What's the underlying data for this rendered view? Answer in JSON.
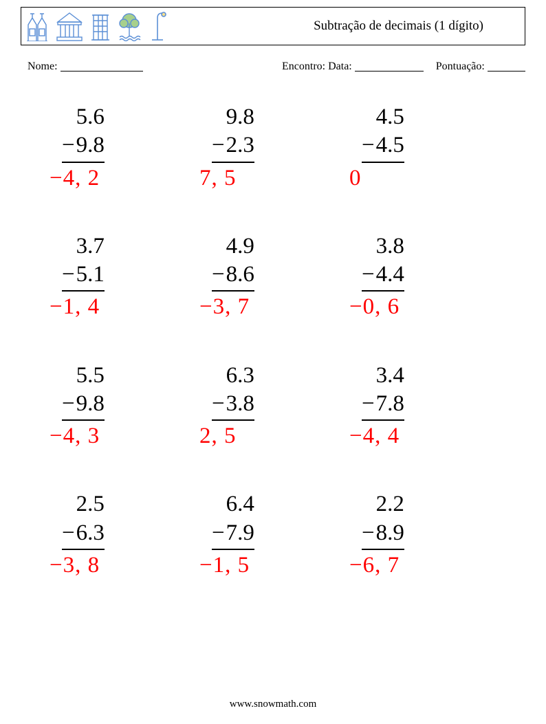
{
  "header": {
    "title": "Subtração de decimais (1 dígito)",
    "icon_stroke": "#5b8fd6",
    "icon_fill": "#a7d08c"
  },
  "meta": {
    "name_label": "Nome:",
    "date_label": "Encontro: Data:",
    "score_label": "Pontuação:",
    "name_blank_width": 120,
    "date_blank_width": 100,
    "score_blank_width": 55
  },
  "operator": "−",
  "problems": [
    {
      "a": "5.6",
      "b": "9.8",
      "ans": "−4, 2"
    },
    {
      "a": "9.8",
      "b": "2.3",
      "ans": "7, 5"
    },
    {
      "a": "4.5",
      "b": "4.5",
      "ans": "0"
    },
    {
      "a": "3.7",
      "b": "5.1",
      "ans": "−1, 4"
    },
    {
      "a": "4.9",
      "b": "8.6",
      "ans": "−3, 7"
    },
    {
      "a": "3.8",
      "b": "4.4",
      "ans": "−0, 6"
    },
    {
      "a": "5.5",
      "b": "9.8",
      "ans": "−4, 3"
    },
    {
      "a": "6.3",
      "b": "3.8",
      "ans": "2, 5"
    },
    {
      "a": "3.4",
      "b": "7.8",
      "ans": "−4, 4"
    },
    {
      "a": "2.5",
      "b": "6.3",
      "ans": "−3, 8"
    },
    {
      "a": "6.4",
      "b": "7.9",
      "ans": "−1, 5"
    },
    {
      "a": "2.2",
      "b": "8.9",
      "ans": "−6, 7"
    }
  ],
  "footer": {
    "url": "www.snowmath.com"
  },
  "styling": {
    "page_bg": "#ffffff",
    "text_color": "#000000",
    "answer_color": "#ff0000",
    "problem_fontsize": 33,
    "title_fontsize": 19,
    "meta_fontsize": 16,
    "grid_cols": 3,
    "grid_rows": 4
  }
}
